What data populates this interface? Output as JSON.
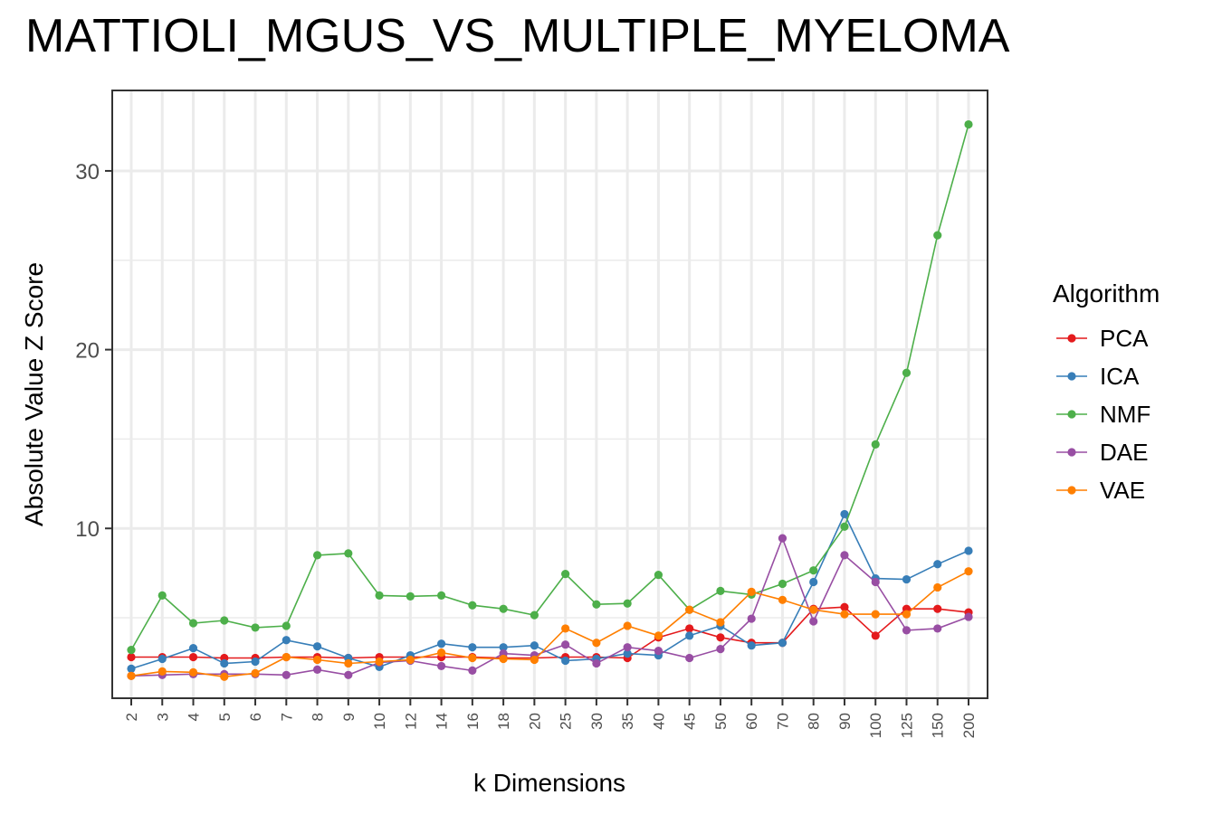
{
  "chart_data": {
    "type": "line",
    "title": "MATTIOLI_MGUS_VS_MULTIPLE_MYELOMA",
    "xlabel": "k Dimensions",
    "ylabel": "Absolute Value Z Score",
    "categories": [
      "2",
      "3",
      "4",
      "5",
      "6",
      "7",
      "8",
      "9",
      "10",
      "12",
      "14",
      "16",
      "18",
      "20",
      "25",
      "30",
      "35",
      "40",
      "45",
      "50",
      "60",
      "70",
      "80",
      "90",
      "100",
      "125",
      "150",
      "200"
    ],
    "yticks": [
      10,
      20,
      30
    ],
    "ylim": [
      0.5,
      34.5
    ],
    "grid": true,
    "legend": {
      "title": "Algorithm",
      "position": "right"
    },
    "series": [
      {
        "name": "PCA",
        "color": "#E41A1C",
        "values": [
          2.8,
          2.8,
          2.8,
          2.75,
          2.75,
          2.8,
          2.8,
          2.75,
          2.8,
          2.8,
          2.8,
          2.8,
          2.75,
          2.75,
          2.8,
          2.8,
          2.75,
          3.9,
          4.4,
          3.9,
          3.6,
          3.6,
          5.5,
          5.6,
          4.0,
          5.5,
          5.5,
          5.3
        ]
      },
      {
        "name": "ICA",
        "color": "#377EB8",
        "values": [
          2.15,
          2.7,
          3.3,
          2.45,
          2.55,
          3.75,
          3.4,
          2.75,
          2.25,
          2.9,
          3.55,
          3.35,
          3.35,
          3.45,
          2.6,
          2.7,
          3.0,
          2.9,
          4.0,
          4.55,
          3.45,
          3.6,
          7.0,
          10.8,
          7.2,
          7.15,
          8.0,
          8.75
        ]
      },
      {
        "name": "NMF",
        "color": "#4DAF4A",
        "values": [
          3.2,
          6.25,
          4.7,
          4.85,
          4.45,
          4.55,
          8.5,
          8.6,
          6.25,
          6.2,
          6.25,
          5.7,
          5.5,
          5.15,
          7.45,
          5.75,
          5.8,
          7.4,
          5.45,
          6.5,
          6.3,
          6.9,
          7.65,
          10.1,
          14.7,
          18.7,
          26.4,
          32.6
        ]
      },
      {
        "name": "DAE",
        "color": "#984EA3",
        "values": [
          1.75,
          1.8,
          1.85,
          1.85,
          1.85,
          1.8,
          2.1,
          1.8,
          2.5,
          2.6,
          2.3,
          2.05,
          3.0,
          2.9,
          3.5,
          2.45,
          3.35,
          3.15,
          2.75,
          3.25,
          4.95,
          9.45,
          4.8,
          8.5,
          7.0,
          4.3,
          4.4,
          5.05
        ]
      },
      {
        "name": "VAE",
        "color": "#FF7F00",
        "values": [
          1.75,
          2.0,
          1.95,
          1.7,
          1.9,
          2.8,
          2.65,
          2.45,
          2.55,
          2.65,
          3.05,
          2.75,
          2.7,
          2.65,
          4.4,
          3.6,
          4.55,
          4.0,
          5.45,
          4.75,
          6.45,
          6.0,
          5.45,
          5.2,
          5.2,
          5.2,
          6.7,
          7.6
        ]
      }
    ]
  }
}
